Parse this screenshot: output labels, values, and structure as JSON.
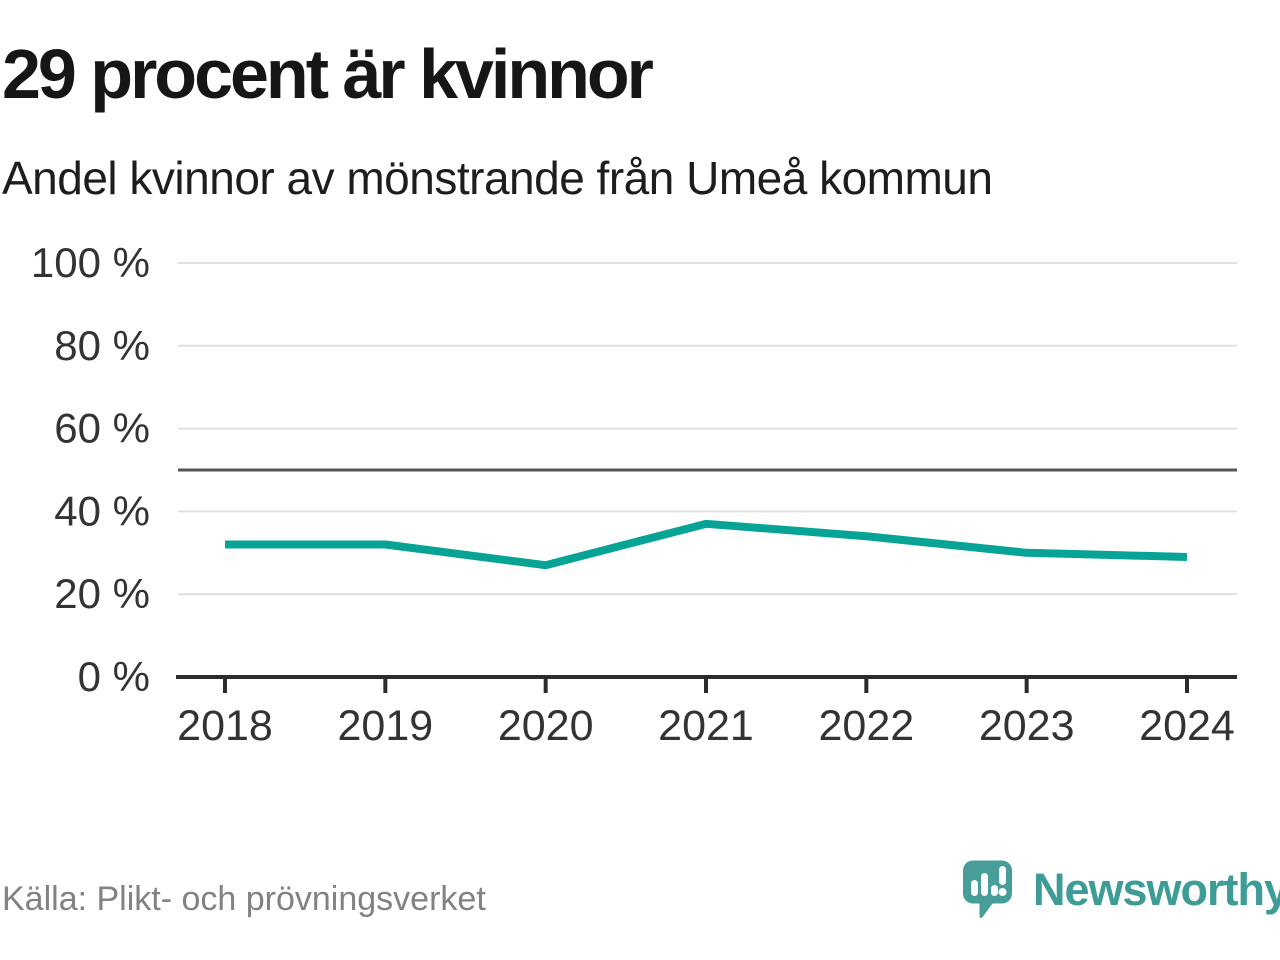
{
  "header": {
    "title": "29 procent är kvinnor",
    "subtitle": "Andel kvinnor av mönstrande från Umeå kommun"
  },
  "chart_data": {
    "type": "line",
    "title": "29 procent är kvinnor",
    "subtitle": "Andel kvinnor av mönstrande från Umeå kommun",
    "categories": [
      "2018",
      "2019",
      "2020",
      "2021",
      "2022",
      "2023",
      "2024"
    ],
    "values": [
      32,
      32,
      27,
      37,
      34,
      30,
      29
    ],
    "unit": "%",
    "xlabel": "",
    "ylabel": "",
    "ylim": [
      0,
      100
    ],
    "y_ticks": [
      {
        "value": 0,
        "label": "0 %"
      },
      {
        "value": 20,
        "label": "20 %"
      },
      {
        "value": 40,
        "label": "40 %"
      },
      {
        "value": 60,
        "label": "60 %"
      },
      {
        "value": 80,
        "label": "80 %"
      },
      {
        "value": 100,
        "label": "100 %"
      }
    ],
    "reference_line": 50,
    "grid": true,
    "legend": "none"
  },
  "footer": {
    "source": "Källa: Plikt- och prövningsverket",
    "brand": "Newsworthy"
  },
  "colors": {
    "line": "#07a496",
    "reference_line": "#54555b",
    "gridline": "#e0e0e0",
    "axis": "#2b2b2b",
    "tick_label": "#333333",
    "logo_bubble": "#479e98",
    "logo_glyph": "#ffffff",
    "wordmark": "#3d9c95"
  }
}
